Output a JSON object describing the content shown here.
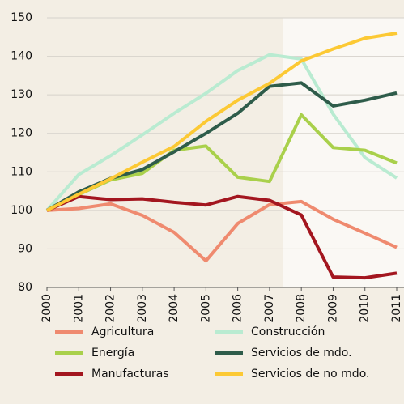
{
  "chart_data": {
    "type": "line",
    "x": [
      "2000",
      "2001",
      "2002",
      "2003",
      "2004",
      "2005",
      "2006",
      "2007",
      "2008",
      "2009",
      "2010",
      "2011"
    ],
    "series": [
      {
        "name": "Agricultura",
        "color": "#ef8a6f",
        "values": [
          100,
          100.5,
          101.7,
          98.7,
          94.3,
          86.9,
          96.6,
          101.5,
          102.3,
          97.7,
          94.1,
          90.4
        ]
      },
      {
        "name": "Construcción",
        "color": "#b9ebd1",
        "values": [
          100,
          109.3,
          114.2,
          119.6,
          125.2,
          130.4,
          136.3,
          140.4,
          139.3,
          125.0,
          113.7,
          108.4
        ]
      },
      {
        "name": "Energía",
        "color": "#a9d04b",
        "values": [
          100,
          104.1,
          107.9,
          109.6,
          115.6,
          116.7,
          108.6,
          107.5,
          124.8,
          116.3,
          115.6,
          112.3
        ]
      },
      {
        "name": "Servicios de mdo.",
        "color": "#2e5c4a",
        "values": [
          100,
          104.8,
          108.3,
          110.6,
          115.2,
          120.0,
          125.2,
          132.2,
          133.1,
          127.1,
          128.6,
          130.5
        ]
      },
      {
        "name": "Manufacturas",
        "color": "#a3161f",
        "values": [
          100,
          103.6,
          102.8,
          103.0,
          102.1,
          101.4,
          103.6,
          102.6,
          98.8,
          82.7,
          82.5,
          83.7
        ]
      },
      {
        "name": "Servicios de no mdo.",
        "color": "#fcc934",
        "values": [
          100,
          104.2,
          108.2,
          112.5,
          116.6,
          123.1,
          128.6,
          133.0,
          138.8,
          141.9,
          144.7,
          146.0
        ]
      }
    ],
    "ylim": [
      80,
      150
    ],
    "yticks": [
      80,
      90,
      100,
      110,
      120,
      130,
      140,
      150
    ],
    "grid": true,
    "legend": "bottom"
  }
}
